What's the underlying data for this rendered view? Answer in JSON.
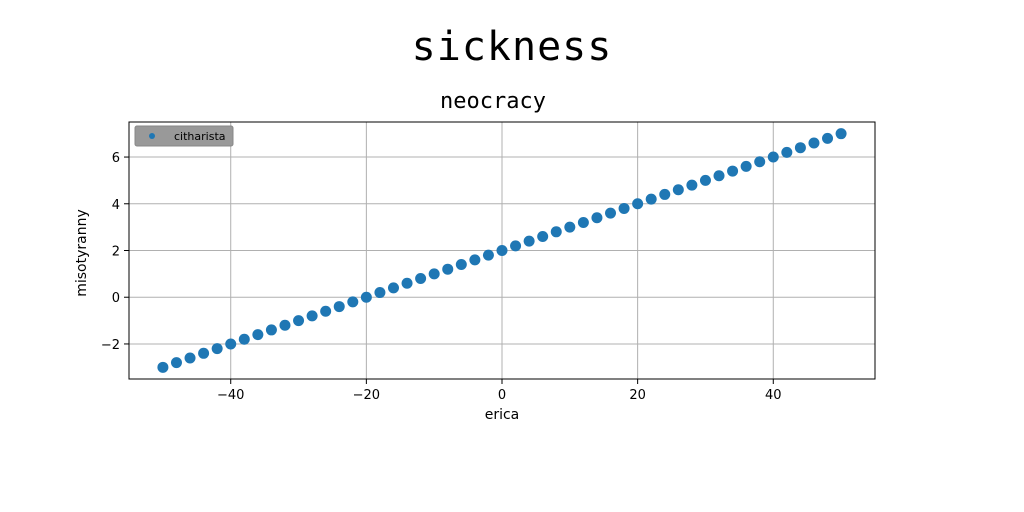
{
  "suptitle": "sickness",
  "chart_data": {
    "type": "scatter",
    "title": "neocracy",
    "xlabel": "erica",
    "ylabel": "misotyranny",
    "xlim": [
      -55,
      55
    ],
    "ylim": [
      -3.5,
      7.5
    ],
    "xticks": [
      -40,
      -20,
      0,
      20,
      40
    ],
    "yticks": [
      -2,
      0,
      2,
      4,
      6
    ],
    "xtick_labels": [
      "−40",
      "−20",
      "0",
      "20",
      "40"
    ],
    "ytick_labels": [
      "−2",
      "0",
      "2",
      "4",
      "6"
    ],
    "grid": true,
    "legend_position": "top-left",
    "series": [
      {
        "name": "citharista",
        "color": "#1f77b4",
        "x": [
          -50,
          -48,
          -46,
          -44,
          -42,
          -40,
          -38,
          -36,
          -34,
          -32,
          -30,
          -28,
          -26,
          -24,
          -22,
          -20,
          -18,
          -16,
          -14,
          -12,
          -10,
          -8,
          -6,
          -4,
          -2,
          0,
          2,
          4,
          6,
          8,
          10,
          12,
          14,
          16,
          18,
          20,
          22,
          24,
          26,
          28,
          30,
          32,
          34,
          36,
          38,
          40,
          42,
          44,
          46,
          48,
          50
        ],
        "y": [
          -3.0,
          -2.8,
          -2.6,
          -2.4,
          -2.2,
          -2.0,
          -1.8,
          -1.6,
          -1.4,
          -1.2,
          -1.0,
          -0.8,
          -0.6,
          -0.4,
          -0.2,
          0.0,
          0.2,
          0.4,
          0.6,
          0.8,
          1.0,
          1.2,
          1.4,
          1.6,
          1.8,
          2.0,
          2.2,
          2.4,
          2.6,
          2.8,
          3.0,
          3.2,
          3.4,
          3.6,
          3.8,
          4.0,
          4.2,
          4.4,
          4.6,
          4.8,
          5.0,
          5.2,
          5.4,
          5.6,
          5.8,
          6.0,
          6.2,
          6.4,
          6.6,
          6.8,
          7.0
        ]
      }
    ]
  }
}
